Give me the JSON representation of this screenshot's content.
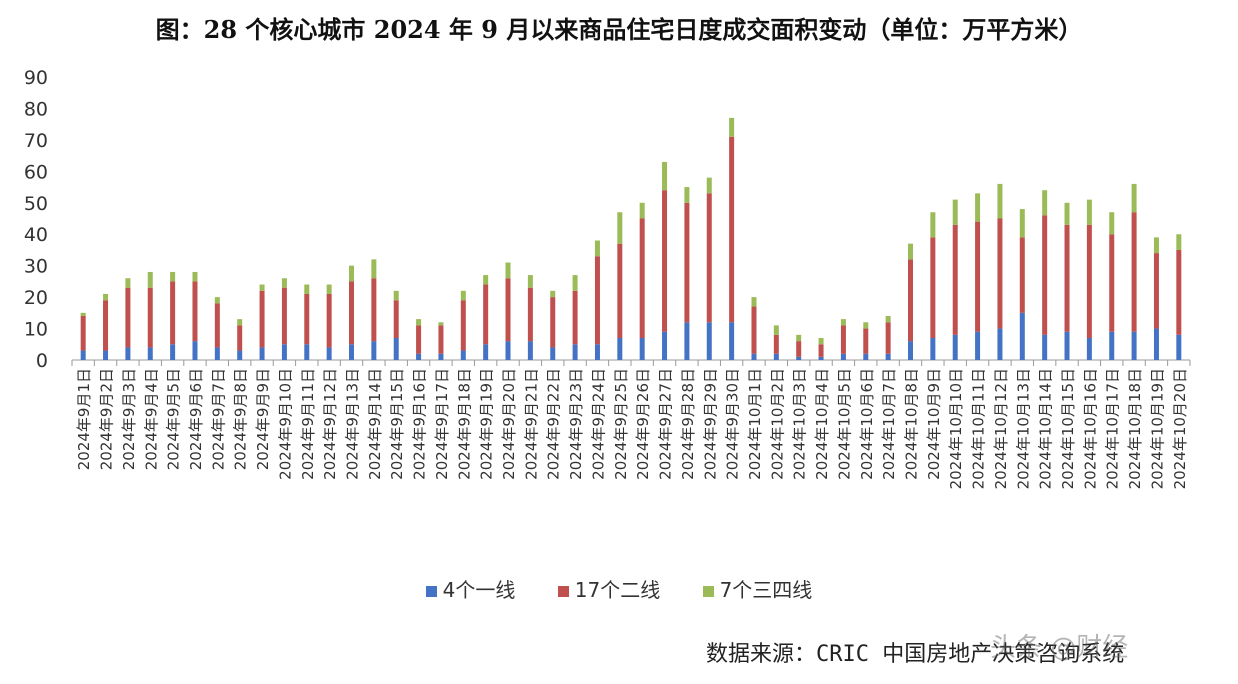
{
  "title": "图：28 个核心城市 2024 年 9 月以来商品住宅日度成交面积变动（单位：万平方米）",
  "source": "数据来源：CRIC 中国房地产决策咨询系统",
  "watermark": "头条 @财经",
  "colors": {
    "tier1": "#4472C4",
    "tier2": "#C0504D",
    "tier34": "#9BBB59"
  },
  "chart_data": {
    "type": "bar",
    "stacked": true,
    "title": "图：28 个核心城市 2024 年 9 月以来商品住宅日度成交面积变动（单位：万平方米）",
    "ylim": [
      0,
      90
    ],
    "yticks": [
      0,
      10,
      20,
      30,
      40,
      50,
      60,
      70,
      80,
      90
    ],
    "legend": "bottom",
    "categories": [
      "2024年9月1日",
      "2024年9月2日",
      "2024年9月3日",
      "2024年9月4日",
      "2024年9月5日",
      "2024年9月6日",
      "2024年9月7日",
      "2024年9月8日",
      "2024年9月9日",
      "2024年9月10日",
      "2024年9月11日",
      "2024年9月12日",
      "2024年9月13日",
      "2024年9月14日",
      "2024年9月15日",
      "2024年9月16日",
      "2024年9月17日",
      "2024年9月18日",
      "2024年9月19日",
      "2024年9月20日",
      "2024年9月21日",
      "2024年9月22日",
      "2024年9月23日",
      "2024年9月24日",
      "2024年9月25日",
      "2024年9月26日",
      "2024年9月27日",
      "2024年9月28日",
      "2024年9月29日",
      "2024年9月30日",
      "2024年10月1日",
      "2024年10月2日",
      "2024年10月3日",
      "2024年10月4日",
      "2024年10月5日",
      "2024年10月6日",
      "2024年10月7日",
      "2024年10月8日",
      "2024年10月9日",
      "2024年10月10日",
      "2024年10月11日",
      "2024年10月12日",
      "2024年10月13日",
      "2024年10月14日",
      "2024年10月15日",
      "2024年10月16日",
      "2024年10月17日",
      "2024年10月18日",
      "2024年10月19日",
      "2024年10月20日"
    ],
    "series": [
      {
        "name": "4个一线",
        "values": [
          3,
          3,
          4,
          4,
          5,
          6,
          4,
          3,
          4,
          5,
          5,
          4,
          5,
          6,
          7,
          2,
          2,
          3,
          5,
          6,
          6,
          4,
          5,
          5,
          7,
          7,
          9,
          12,
          12,
          12,
          2,
          2,
          1,
          1,
          2,
          2,
          2,
          6,
          7,
          8,
          9,
          10,
          15,
          8,
          9,
          7,
          9,
          9,
          10,
          8
        ]
      },
      {
        "name": "17个二线",
        "values": [
          11,
          16,
          19,
          19,
          20,
          19,
          14,
          8,
          18,
          18,
          16,
          17,
          20,
          20,
          12,
          9,
          9,
          16,
          19,
          20,
          17,
          16,
          17,
          28,
          30,
          38,
          45,
          38,
          41,
          59,
          15,
          6,
          5,
          4,
          9,
          8,
          10,
          26,
          32,
          35,
          35,
          35,
          24,
          38,
          34,
          36,
          31,
          38,
          24,
          27
        ]
      },
      {
        "name": "7个三四线",
        "values": [
          1,
          2,
          3,
          5,
          3,
          3,
          2,
          2,
          2,
          3,
          3,
          3,
          5,
          6,
          3,
          2,
          1,
          3,
          3,
          5,
          4,
          2,
          5,
          5,
          10,
          5,
          9,
          5,
          5,
          6,
          3,
          3,
          2,
          2,
          2,
          2,
          2,
          5,
          8,
          8,
          9,
          11,
          9,
          8,
          7,
          8,
          7,
          9,
          5,
          5
        ]
      }
    ]
  }
}
